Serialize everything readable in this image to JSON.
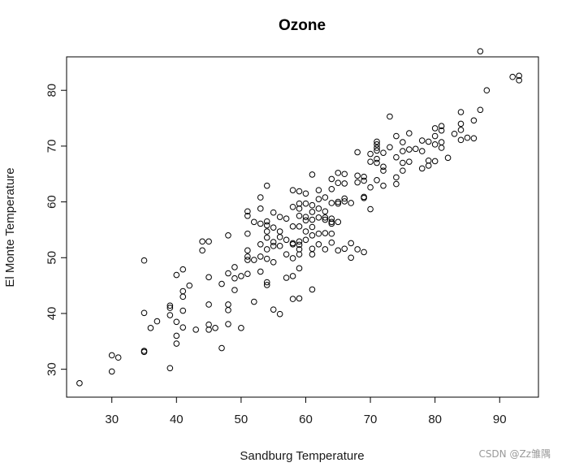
{
  "chart_data": {
    "type": "scatter",
    "title": "Ozone",
    "xlabel": "Sandburg Temperature",
    "ylabel": "El Monte Temperature",
    "xlim": [
      23,
      96
    ],
    "ylim": [
      25,
      86
    ],
    "xticks": [
      30,
      40,
      50,
      60,
      70,
      80,
      90
    ],
    "yticks": [
      30,
      40,
      50,
      60,
      70,
      80
    ],
    "grid": false,
    "legend": "none",
    "marker_color": "#000000",
    "points": [
      [
        25,
        27.5
      ],
      [
        30,
        32.5
      ],
      [
        30,
        29.6
      ],
      [
        31,
        32.1
      ],
      [
        35,
        33.1
      ],
      [
        35,
        33.3
      ],
      [
        35,
        40.1
      ],
      [
        35,
        49.5
      ],
      [
        36,
        37.4
      ],
      [
        37,
        38.6
      ],
      [
        39,
        41.4
      ],
      [
        39,
        41.0
      ],
      [
        39,
        39.7
      ],
      [
        39,
        30.2
      ],
      [
        40,
        46.9
      ],
      [
        40,
        38.5
      ],
      [
        40,
        36.0
      ],
      [
        40,
        34.6
      ],
      [
        41,
        43.0
      ],
      [
        41,
        44.0
      ],
      [
        41,
        47.9
      ],
      [
        41,
        40.5
      ],
      [
        41,
        37.5
      ],
      [
        42,
        45.0
      ],
      [
        43,
        37.1
      ],
      [
        44,
        52.9
      ],
      [
        44,
        51.3
      ],
      [
        45,
        52.9
      ],
      [
        45,
        46.5
      ],
      [
        45,
        41.6
      ],
      [
        45,
        38.0
      ],
      [
        45,
        37.1
      ],
      [
        46,
        37.4
      ],
      [
        47,
        45.3
      ],
      [
        47,
        33.8
      ],
      [
        48,
        54.0
      ],
      [
        48,
        47.2
      ],
      [
        48,
        41.6
      ],
      [
        48,
        40.6
      ],
      [
        48,
        38.1
      ],
      [
        49,
        48.3
      ],
      [
        49,
        46.3
      ],
      [
        49,
        44.2
      ],
      [
        50,
        37.4
      ],
      [
        50,
        46.7
      ],
      [
        51,
        58.3
      ],
      [
        51,
        57.5
      ],
      [
        51,
        54.3
      ],
      [
        51,
        51.3
      ],
      [
        51,
        50.2
      ],
      [
        51,
        49.6
      ],
      [
        51,
        47.1
      ],
      [
        52,
        56.4
      ],
      [
        52,
        49.6
      ],
      [
        52,
        42.1
      ],
      [
        53,
        60.8
      ],
      [
        53,
        58.8
      ],
      [
        53,
        56.1
      ],
      [
        53,
        52.4
      ],
      [
        53,
        50.2
      ],
      [
        53,
        47.5
      ],
      [
        54,
        62.9
      ],
      [
        54,
        56.5
      ],
      [
        54,
        55.8
      ],
      [
        54,
        54.7
      ],
      [
        54,
        53.6
      ],
      [
        54,
        51.5
      ],
      [
        54,
        49.8
      ],
      [
        54,
        45.6
      ],
      [
        54,
        45.1
      ],
      [
        55,
        58.1
      ],
      [
        55,
        55.4
      ],
      [
        55,
        52.8
      ],
      [
        55,
        52.1
      ],
      [
        55,
        49.2
      ],
      [
        55,
        40.7
      ],
      [
        56,
        57.3
      ],
      [
        56,
        54.7
      ],
      [
        56,
        53.7
      ],
      [
        56,
        52.1
      ],
      [
        56,
        39.9
      ],
      [
        57,
        57.0
      ],
      [
        57,
        53.2
      ],
      [
        57,
        50.6
      ],
      [
        57,
        46.4
      ],
      [
        58,
        62.1
      ],
      [
        58,
        59.1
      ],
      [
        58,
        55.6
      ],
      [
        58,
        52.6
      ],
      [
        58,
        52.4
      ],
      [
        58,
        49.9
      ],
      [
        58,
        46.7
      ],
      [
        58,
        42.6
      ],
      [
        59,
        61.9
      ],
      [
        59,
        59.7
      ],
      [
        59,
        58.8
      ],
      [
        59,
        57.5
      ],
      [
        59,
        55.6
      ],
      [
        59,
        52.9
      ],
      [
        59,
        52.3
      ],
      [
        59,
        51.5
      ],
      [
        59,
        50.6
      ],
      [
        59,
        48.1
      ],
      [
        59,
        42.7
      ],
      [
        60,
        61.5
      ],
      [
        60,
        59.7
      ],
      [
        60,
        57.3
      ],
      [
        60,
        56.7
      ],
      [
        60,
        54.7
      ],
      [
        60,
        53.2
      ],
      [
        61,
        64.9
      ],
      [
        61,
        59.4
      ],
      [
        61,
        58.2
      ],
      [
        61,
        56.8
      ],
      [
        61,
        55.5
      ],
      [
        61,
        54.0
      ],
      [
        61,
        51.6
      ],
      [
        61,
        50.6
      ],
      [
        61,
        44.3
      ],
      [
        62,
        62.1
      ],
      [
        62,
        60.5
      ],
      [
        62,
        58.8
      ],
      [
        62,
        57.2
      ],
      [
        62,
        54.3
      ],
      [
        62,
        52.4
      ],
      [
        63,
        60.8
      ],
      [
        63,
        58.3
      ],
      [
        63,
        57.2
      ],
      [
        63,
        56.8
      ],
      [
        63,
        54.4
      ],
      [
        63,
        51.5
      ],
      [
        64,
        64.1
      ],
      [
        64,
        62.3
      ],
      [
        64,
        59.8
      ],
      [
        64,
        57.0
      ],
      [
        64,
        56.4
      ],
      [
        64,
        56.1
      ],
      [
        64,
        54.3
      ],
      [
        64,
        52.7
      ],
      [
        65,
        65.2
      ],
      [
        65,
        63.4
      ],
      [
        65,
        60.0
      ],
      [
        65,
        59.7
      ],
      [
        65,
        56.4
      ],
      [
        65,
        51.3
      ],
      [
        66,
        65.0
      ],
      [
        66,
        63.3
      ],
      [
        66,
        60.6
      ],
      [
        66,
        60.1
      ],
      [
        66,
        51.6
      ],
      [
        67,
        59.8
      ],
      [
        67,
        52.6
      ],
      [
        67,
        50.0
      ],
      [
        68,
        68.9
      ],
      [
        68,
        64.7
      ],
      [
        68,
        63.5
      ],
      [
        68,
        51.5
      ],
      [
        69,
        64.5
      ],
      [
        69,
        63.8
      ],
      [
        69,
        60.9
      ],
      [
        69,
        60.7
      ],
      [
        69,
        51.0
      ],
      [
        70,
        68.6
      ],
      [
        70,
        67.2
      ],
      [
        70,
        62.6
      ],
      [
        70,
        58.7
      ],
      [
        71,
        70.8
      ],
      [
        71,
        70.3
      ],
      [
        71,
        69.7
      ],
      [
        71,
        69.2
      ],
      [
        71,
        67.7
      ],
      [
        71,
        67.0
      ],
      [
        71,
        63.9
      ],
      [
        72,
        68.8
      ],
      [
        72,
        66.3
      ],
      [
        72,
        65.6
      ],
      [
        72,
        62.9
      ],
      [
        73,
        75.3
      ],
      [
        73,
        69.8
      ],
      [
        74,
        71.8
      ],
      [
        74,
        68.0
      ],
      [
        74,
        64.4
      ],
      [
        74,
        63.2
      ],
      [
        75,
        70.7
      ],
      [
        75,
        69.1
      ],
      [
        75,
        67.0
      ],
      [
        75,
        65.6
      ],
      [
        76,
        72.3
      ],
      [
        76,
        69.4
      ],
      [
        76,
        67.2
      ],
      [
        77,
        69.5
      ],
      [
        78,
        71.0
      ],
      [
        78,
        69.1
      ],
      [
        78,
        66.0
      ],
      [
        79,
        70.8
      ],
      [
        79,
        67.4
      ],
      [
        79,
        66.5
      ],
      [
        80,
        73.2
      ],
      [
        80,
        71.8
      ],
      [
        80,
        70.3
      ],
      [
        80,
        67.3
      ],
      [
        81,
        73.6
      ],
      [
        81,
        72.8
      ],
      [
        81,
        70.7
      ],
      [
        81,
        69.7
      ],
      [
        82,
        67.9
      ],
      [
        83,
        72.2
      ],
      [
        84,
        76.1
      ],
      [
        84,
        74.0
      ],
      [
        84,
        72.9
      ],
      [
        84,
        71.1
      ],
      [
        85,
        71.5
      ],
      [
        86,
        74.6
      ],
      [
        86,
        71.4
      ],
      [
        87,
        87.0
      ],
      [
        87,
        76.5
      ],
      [
        88,
        80.0
      ],
      [
        92,
        82.4
      ],
      [
        93,
        82.6
      ],
      [
        93,
        81.8
      ]
    ]
  },
  "watermark": "CSDN @Zz雏隅"
}
